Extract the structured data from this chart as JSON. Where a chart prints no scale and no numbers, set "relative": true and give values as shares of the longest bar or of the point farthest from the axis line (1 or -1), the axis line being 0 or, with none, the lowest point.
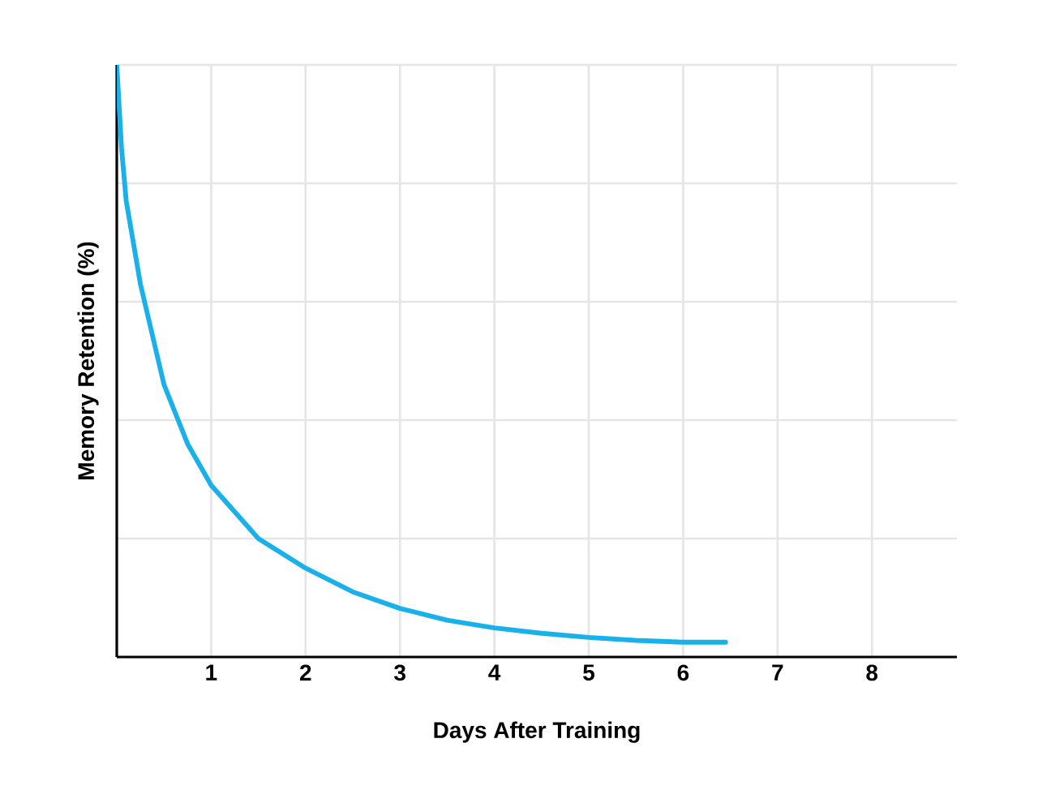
{
  "chart_data": {
    "type": "line",
    "xlabel": "Days After Training",
    "ylabel": "Memory Retention (%)",
    "relative": true,
    "grid": true,
    "marker": "none",
    "line_style": "solid",
    "xlim": [
      0,
      8.9
    ],
    "xticks": [
      1,
      2,
      3,
      4,
      5,
      6,
      7,
      8
    ],
    "series": [
      {
        "color": "#1ab0ea",
        "x": [
          0,
          0.05,
          0.1,
          0.25,
          0.5,
          0.75,
          1,
          1.5,
          2,
          2.5,
          3,
          3.5,
          4,
          4.5,
          5,
          5.5,
          6,
          6.45
        ],
        "values": [
          1,
          0.86,
          0.77,
          0.63,
          0.46,
          0.36,
          0.29,
          0.2,
          0.15,
          0.11,
          0.082,
          0.062,
          0.049,
          0.04,
          0.033,
          0.028,
          0.025,
          0.025
        ]
      }
    ]
  }
}
